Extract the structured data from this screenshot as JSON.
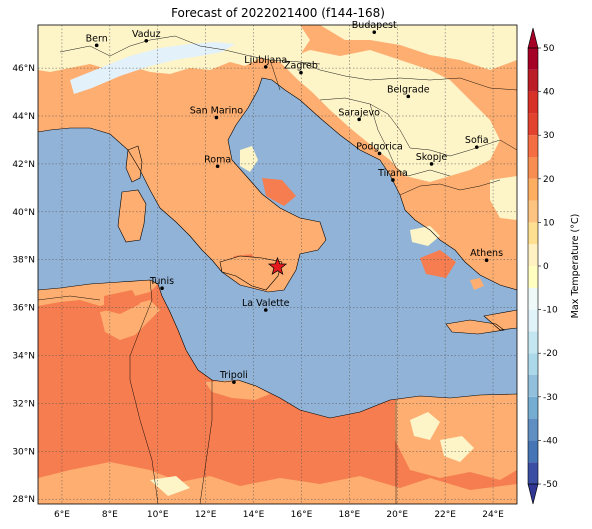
{
  "title": "Forecast of 2022021400 (f144-168)",
  "map": {
    "lon_range": [
      5,
      25
    ],
    "lat_range": [
      27.8,
      47.8
    ],
    "lon_ticks": [
      {
        "v": 6,
        "label": "6°E"
      },
      {
        "v": 8,
        "label": "8°E"
      },
      {
        "v": 10,
        "label": "10°E"
      },
      {
        "v": 12,
        "label": "12°E"
      },
      {
        "v": 14,
        "label": "14°E"
      },
      {
        "v": 16,
        "label": "16°E"
      },
      {
        "v": 18,
        "label": "18°E"
      },
      {
        "v": 20,
        "label": "20°E"
      },
      {
        "v": 22,
        "label": "22°E"
      },
      {
        "v": 24,
        "label": "24°E"
      }
    ],
    "lat_ticks": [
      {
        "v": 28,
        "label": "28°N"
      },
      {
        "v": 30,
        "label": "30°N"
      },
      {
        "v": 32,
        "label": "32°N"
      },
      {
        "v": 34,
        "label": "34°N"
      },
      {
        "v": 36,
        "label": "36°N"
      },
      {
        "v": 38,
        "label": "38°N"
      },
      {
        "v": 40,
        "label": "40°N"
      },
      {
        "v": 42,
        "label": "42°N"
      },
      {
        "v": 44,
        "label": "44°N"
      },
      {
        "v": 46,
        "label": "46°N"
      }
    ],
    "gridlines": true,
    "marker": {
      "name": "star",
      "lon": 15.0,
      "lat": 37.7,
      "color": "#e41a1c"
    },
    "cities": [
      {
        "name": "Bern",
        "lon": 7.45,
        "lat": 46.95
      },
      {
        "name": "Vaduz",
        "lon": 9.52,
        "lat": 47.14
      },
      {
        "name": "Budapest",
        "lon": 19.04,
        "lat": 47.5
      },
      {
        "name": "Ljubljana",
        "lon": 14.51,
        "lat": 46.05
      },
      {
        "name": "Zagreb",
        "lon": 15.98,
        "lat": 45.81
      },
      {
        "name": "Belgrade",
        "lon": 20.46,
        "lat": 44.82
      },
      {
        "name": "San Marino",
        "lon": 12.45,
        "lat": 43.94
      },
      {
        "name": "Sarajevo",
        "lon": 18.41,
        "lat": 43.86
      },
      {
        "name": "Sofia",
        "lon": 23.32,
        "lat": 42.7
      },
      {
        "name": "Podgorica",
        "lon": 19.26,
        "lat": 42.44
      },
      {
        "name": "Skopje",
        "lon": 21.43,
        "lat": 42.0
      },
      {
        "name": "Roma",
        "lon": 12.5,
        "lat": 41.9
      },
      {
        "name": "Tirana",
        "lon": 19.82,
        "lat": 41.33
      },
      {
        "name": "Athens",
        "lon": 23.73,
        "lat": 37.98
      },
      {
        "name": "Tunis",
        "lon": 10.18,
        "lat": 36.81
      },
      {
        "name": "La Valette",
        "lon": 14.51,
        "lat": 35.9
      },
      {
        "name": "Tripoli",
        "lon": 13.18,
        "lat": 32.89
      }
    ]
  },
  "colorbar": {
    "label": "Max Temperature (°C)",
    "ticks": [
      "-50",
      "-40",
      "-30",
      "-20",
      "-10",
      "0",
      "10",
      "20",
      "30",
      "40",
      "50"
    ],
    "levels": [
      -50,
      -45,
      -40,
      -35,
      -30,
      -25,
      -20,
      -15,
      -10,
      -5,
      0,
      5,
      10,
      15,
      20,
      25,
      30,
      35,
      40,
      45,
      50
    ],
    "colors": [
      "#313695",
      "#3a4fa3",
      "#4575b4",
      "#5f8fc2",
      "#74add1",
      "#92c0dc",
      "#abd9e9",
      "#c4e6f0",
      "#e0f3f8",
      "#eff9f7",
      "#ffffbf",
      "#fff1c2",
      "#fee090",
      "#fdc380",
      "#fdae61",
      "#f88d52",
      "#f46d43",
      "#e2432e",
      "#d73027",
      "#bb1e26",
      "#a50026"
    ]
  },
  "colors": {
    "sea": "#91b3d7",
    "warm_land": "#f57d4f",
    "mild_land": "#fdae70",
    "cool_land": "#fdf4c8",
    "snow": "#e3f2fa"
  }
}
